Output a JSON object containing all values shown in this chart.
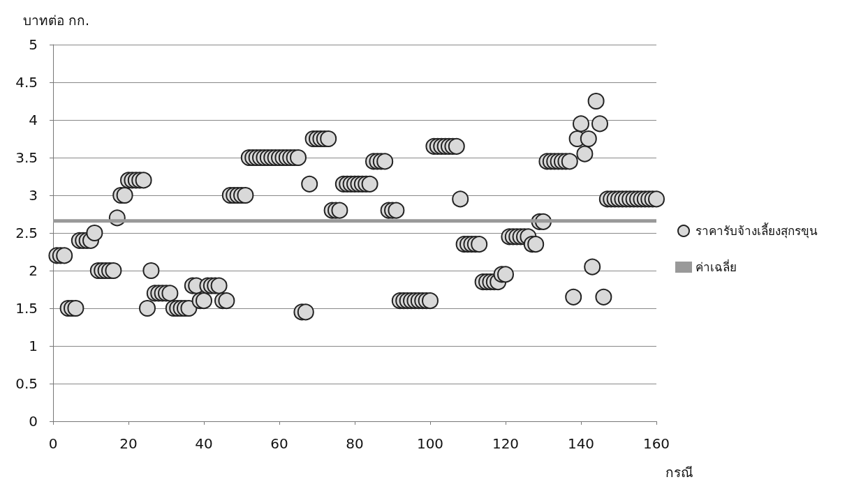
{
  "chart_data": {
    "type": "scatter",
    "ylabel": "บาทต่อ กก.",
    "xlabel": "กรณี",
    "xlim": [
      0,
      160
    ],
    "xticks": [
      0,
      20,
      40,
      60,
      80,
      100,
      120,
      140,
      160
    ],
    "ylim": [
      0,
      5
    ],
    "yticks": [
      0,
      0.5,
      1,
      1.5,
      2,
      2.5,
      3,
      3.5,
      4,
      4.5,
      5
    ],
    "grid": "y",
    "legend": "right",
    "marker": "circle",
    "series": [
      {
        "name": "ราคารับจ้างเลี้ยงสุกรขุน",
        "color": "#d9d9d9",
        "x": [
          1,
          2,
          3,
          4,
          5,
          6,
          7,
          8,
          9,
          10,
          11,
          12,
          13,
          14,
          15,
          16,
          17,
          18,
          19,
          20,
          21,
          22,
          23,
          24,
          25,
          26,
          27,
          28,
          29,
          30,
          31,
          32,
          33,
          34,
          35,
          36,
          37,
          38,
          39,
          40,
          41,
          42,
          43,
          44,
          45,
          46,
          47,
          48,
          49,
          50,
          51,
          52,
          53,
          54,
          55,
          56,
          57,
          58,
          59,
          60,
          61,
          62,
          63,
          64,
          65,
          66,
          67,
          68,
          69,
          70,
          71,
          72,
          73,
          74,
          75,
          76,
          77,
          78,
          79,
          80,
          81,
          82,
          83,
          84,
          85,
          86,
          87,
          88,
          89,
          90,
          91,
          92,
          93,
          94,
          95,
          96,
          97,
          98,
          99,
          100,
          101,
          102,
          103,
          104,
          105,
          106,
          107,
          108,
          109,
          110,
          111,
          112,
          113,
          114,
          115,
          116,
          117,
          118,
          119,
          120,
          121,
          122,
          123,
          124,
          125,
          126,
          127,
          128,
          129,
          130,
          131,
          132,
          133,
          134,
          135,
          136,
          137,
          138,
          139,
          140,
          141,
          142,
          143,
          144,
          145,
          146,
          147,
          148,
          149,
          150,
          151,
          152,
          153,
          154,
          155,
          156,
          157,
          158,
          159,
          160
        ],
        "values": [
          2.2,
          2.2,
          2.2,
          1.5,
          1.5,
          1.5,
          2.4,
          2.4,
          2.4,
          2.4,
          2.5,
          2.0,
          2.0,
          2.0,
          2.0,
          2.0,
          2.7,
          3.0,
          3.0,
          3.2,
          3.2,
          3.2,
          3.2,
          3.2,
          1.5,
          2.0,
          1.7,
          1.7,
          1.7,
          1.7,
          1.7,
          1.5,
          1.5,
          1.5,
          1.5,
          1.5,
          1.8,
          1.8,
          1.6,
          1.6,
          1.8,
          1.8,
          1.8,
          1.8,
          1.6,
          1.6,
          3.0,
          3.0,
          3.0,
          3.0,
          3.0,
          3.5,
          3.5,
          3.5,
          3.5,
          3.5,
          3.5,
          3.5,
          3.5,
          3.5,
          3.5,
          3.5,
          3.5,
          3.5,
          3.5,
          1.45,
          1.45,
          3.15,
          3.75,
          3.75,
          3.75,
          3.75,
          3.75,
          2.8,
          2.8,
          2.8,
          3.15,
          3.15,
          3.15,
          3.15,
          3.15,
          3.15,
          3.15,
          3.15,
          3.45,
          3.45,
          3.45,
          3.45,
          2.8,
          2.8,
          2.8,
          1.6,
          1.6,
          1.6,
          1.6,
          1.6,
          1.6,
          1.6,
          1.6,
          1.6,
          3.65,
          3.65,
          3.65,
          3.65,
          3.65,
          3.65,
          3.65,
          2.95,
          2.35,
          2.35,
          2.35,
          2.35,
          2.35,
          1.85,
          1.85,
          1.85,
          1.85,
          1.85,
          1.95,
          1.95,
          2.45,
          2.45,
          2.45,
          2.45,
          2.45,
          2.45,
          2.35,
          2.35,
          2.65,
          2.65,
          3.45,
          3.45,
          3.45,
          3.45,
          3.45,
          3.45,
          3.45,
          1.65,
          3.75,
          3.95,
          3.55,
          3.75,
          2.05,
          4.25,
          3.95,
          1.65,
          2.95,
          2.95,
          2.95,
          2.95,
          2.95,
          2.95,
          2.95,
          2.95,
          2.95,
          2.95,
          2.95,
          2.95,
          2.95,
          2.95
        ]
      },
      {
        "name": "ค่าเฉลี่ย",
        "type": "line",
        "color": "#999999",
        "marker": "none",
        "x": [
          0,
          160
        ],
        "values": [
          2.66,
          2.66
        ]
      }
    ]
  }
}
